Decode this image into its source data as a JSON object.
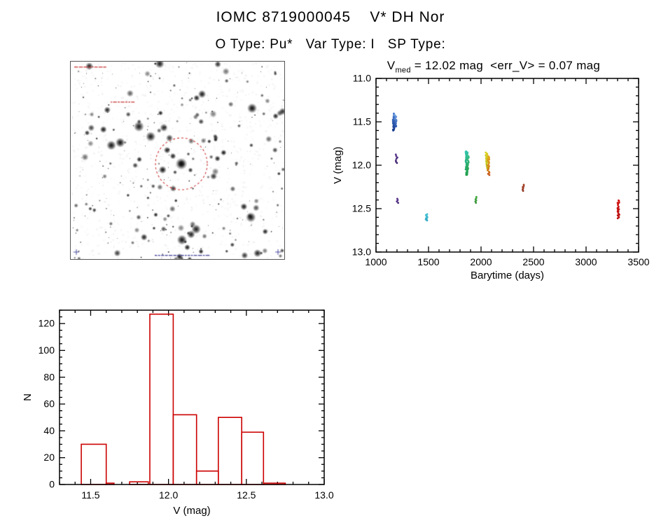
{
  "header": {
    "title": "IOMC 8719000045    V* DH Nor",
    "subtitle": "O Type: Pu*   Var Type: I   SP Type:"
  },
  "starfield": {
    "content": "grayscale-star-finder-chart",
    "marker_shape": "dashed-circle",
    "marker_color": "#cc3c3c"
  },
  "chart_data": [
    {
      "id": "lightcurve",
      "type": "scatter",
      "title": {
        "prefix": "V",
        "sub": "med",
        "rest": " = 12.02 mag  <err_V> = 0.07 mag"
      },
      "xlabel": "Barytime (days)",
      "ylabel": "V (mag)",
      "xlim": [
        1000,
        3500
      ],
      "ylim": [
        11.0,
        13.0
      ],
      "y_axis_inverted": true,
      "grid": false,
      "xticks": [
        1000,
        1500,
        2000,
        2500,
        3000,
        3500
      ],
      "xtick_labels": [
        "1000",
        "1500",
        "2000",
        "2500",
        "3000",
        "3500"
      ],
      "yticks": [
        11.0,
        11.5,
        12.0,
        12.5,
        13.0
      ],
      "ytick_labels": [
        "11.0",
        "11.5",
        "12.0",
        "12.5",
        "13.0"
      ],
      "clusters": [
        {
          "x": 1170,
          "y_min": 11.4,
          "y_max": 11.6,
          "n": 30,
          "color_top": "#4a7fd4",
          "color_bottom": "#173a8c"
        },
        {
          "x": 1185,
          "y_min": 11.42,
          "y_max": 11.56,
          "n": 16,
          "color_top": "#6fa0e0",
          "color_bottom": "#2a55b0"
        },
        {
          "x": 1196,
          "y_min": 11.87,
          "y_max": 11.98,
          "n": 7,
          "color_top": "#5a3a90",
          "color_bottom": "#452a72"
        },
        {
          "x": 1204,
          "y_min": 12.38,
          "y_max": 12.44,
          "n": 4,
          "color_top": "#5f3590",
          "color_bottom": "#4a2a78"
        },
        {
          "x": 1482,
          "y_min": 12.56,
          "y_max": 12.64,
          "n": 9,
          "color_top": "#46c4d6",
          "color_bottom": "#2fa8c4"
        },
        {
          "x": 1862,
          "y_min": 11.84,
          "y_max": 12.12,
          "n": 42,
          "color_top": "#2fc4ae",
          "color_bottom": "#1f9e48"
        },
        {
          "x": 1876,
          "y_min": 11.88,
          "y_max": 12.06,
          "n": 18,
          "color_top": "#38c08e",
          "color_bottom": "#2aa455"
        },
        {
          "x": 1948,
          "y_min": 12.36,
          "y_max": 12.44,
          "n": 6,
          "color_top": "#46b044",
          "color_bottom": "#379038"
        },
        {
          "x": 2052,
          "y_min": 11.85,
          "y_max": 12.04,
          "n": 26,
          "color_top": "#d8d020",
          "color_bottom": "#bcc428"
        },
        {
          "x": 2070,
          "y_min": 11.89,
          "y_max": 12.08,
          "n": 18,
          "color_top": "#e4a81e",
          "color_bottom": "#cc7818"
        },
        {
          "x": 2076,
          "y_min": 12.08,
          "y_max": 12.12,
          "n": 3,
          "color_top": "#d06018",
          "color_bottom": "#c05014"
        },
        {
          "x": 2400,
          "y_min": 12.22,
          "y_max": 12.3,
          "n": 7,
          "color_top": "#a8442a",
          "color_bottom": "#943a24"
        },
        {
          "x": 3308,
          "y_min": 12.4,
          "y_max": 12.62,
          "n": 20,
          "color_top": "#d41414",
          "color_bottom": "#b80e0e"
        }
      ]
    },
    {
      "id": "histogram",
      "type": "bar",
      "xlabel": "V (mag)",
      "ylabel": "N",
      "xlim": [
        11.3,
        13.0
      ],
      "ylim": [
        0,
        130
      ],
      "grid": false,
      "bar_color": "#cc0000",
      "xticks": [
        11.5,
        12.0,
        12.5,
        13.0
      ],
      "xtick_labels": [
        "11.5",
        "12.0",
        "12.5",
        "13.0"
      ],
      "yticks": [
        0,
        20,
        40,
        60,
        80,
        100,
        120
      ],
      "ytick_labels": [
        "0",
        "20",
        "40",
        "60",
        "80",
        "100",
        "120"
      ],
      "bins": [
        {
          "x0": 11.44,
          "x1": 11.6,
          "n": 30
        },
        {
          "x0": 11.6,
          "x1": 11.65,
          "n": 1
        },
        {
          "x0": 11.75,
          "x1": 11.87,
          "n": 2
        },
        {
          "x0": 11.88,
          "x1": 12.03,
          "n": 127
        },
        {
          "x0": 12.03,
          "x1": 12.18,
          "n": 52
        },
        {
          "x0": 12.18,
          "x1": 12.32,
          "n": 10
        },
        {
          "x0": 12.32,
          "x1": 12.47,
          "n": 50
        },
        {
          "x0": 12.47,
          "x1": 12.61,
          "n": 39
        },
        {
          "x0": 12.61,
          "x1": 12.75,
          "n": 1
        }
      ]
    }
  ]
}
